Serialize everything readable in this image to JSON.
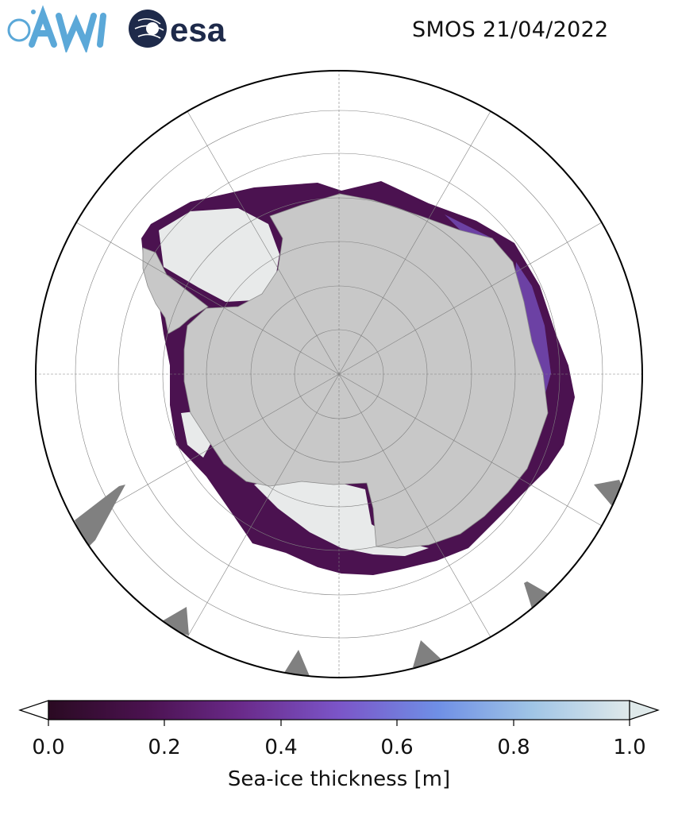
{
  "header": {
    "logo_awi_text": "AWI",
    "logo_esa_text": "esa",
    "title": "SMOS 21/04/2022"
  },
  "map": {
    "projection": "south-polar-stereographic",
    "land_color": "#c8c8c8",
    "ocean_color": "#ffffff",
    "grid_color": "#808080"
  },
  "colorbar": {
    "label": "Sea-ice thickness [m]",
    "ticks": [
      "0.0",
      "0.2",
      "0.4",
      "0.6",
      "0.8",
      "1.0"
    ],
    "range": [
      0.0,
      1.0
    ],
    "colors": [
      "#2a0a22",
      "#4b1250",
      "#6a2a8a",
      "#7b55c8",
      "#6f8fe6",
      "#9fc4e6",
      "#dfe9ea"
    ]
  }
}
